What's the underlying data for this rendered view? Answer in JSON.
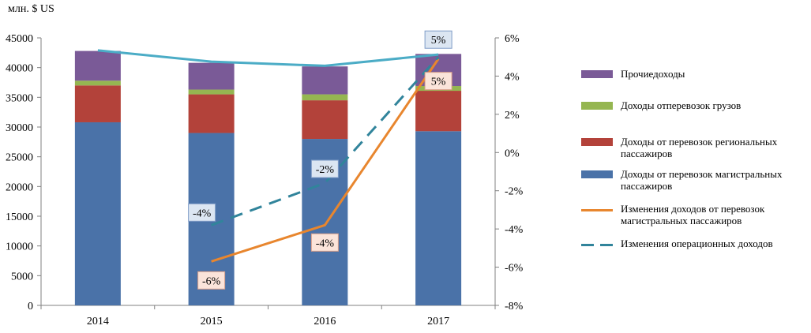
{
  "chart_data": {
    "type": "bar",
    "unit_label": "млн. $ US",
    "categories": [
      "2014",
      "2015",
      "2016",
      "2017"
    ],
    "y_left": {
      "min": 0,
      "max": 45000,
      "step": 5000
    },
    "y_right": {
      "min": -8,
      "max": 6,
      "step": 2,
      "suffix": "%"
    },
    "stacked_series": [
      {
        "name": "Доходы от перевозок магистральных пассажиров",
        "color": "#4A72A8",
        "values": [
          30800,
          29000,
          28000,
          29300
        ]
      },
      {
        "name": "Доходы от перевозок региональных пассажиров",
        "color": "#B3423A",
        "values": [
          6200,
          6500,
          6500,
          6800
        ]
      },
      {
        "name": "Доходы отперевозок грузов",
        "color": "#95B651",
        "values": [
          800,
          800,
          1000,
          800
        ]
      },
      {
        "name": "Прочиедоходы",
        "color": "#7A5A97",
        "values": [
          5000,
          4500,
          4700,
          5400
        ]
      }
    ],
    "line_series": [
      {
        "name": "Изменения доходов от перевозок магистральных пассажиров",
        "color": "#E8862E",
        "style": "solid",
        "values": [
          null,
          -5.7,
          -3.8,
          4.9
        ],
        "labels": [
          null,
          "-6%",
          "-4%",
          "5%"
        ]
      },
      {
        "name": "Изменения операционных доходов",
        "color": "#31849B",
        "style": "dashed",
        "values": [
          null,
          -3.8,
          -1.6,
          5.0
        ],
        "labels": [
          null,
          "-4%",
          "-2%",
          "5%"
        ]
      }
    ],
    "top_line": {
      "color": "#4BACC6",
      "values": [
        42900,
        41000,
        40300,
        42200
      ]
    },
    "legend_position": "right",
    "legend": [
      "Прочиедоходы",
      "Доходы отперевозок грузов",
      "Доходы от перевозок региональных пассажиров",
      "Доходы от перевозок магистральных пассажиров",
      "Изменения  доходов от перевозок магистральных пассажиров",
      "Изменения  операционных доходов"
    ]
  }
}
